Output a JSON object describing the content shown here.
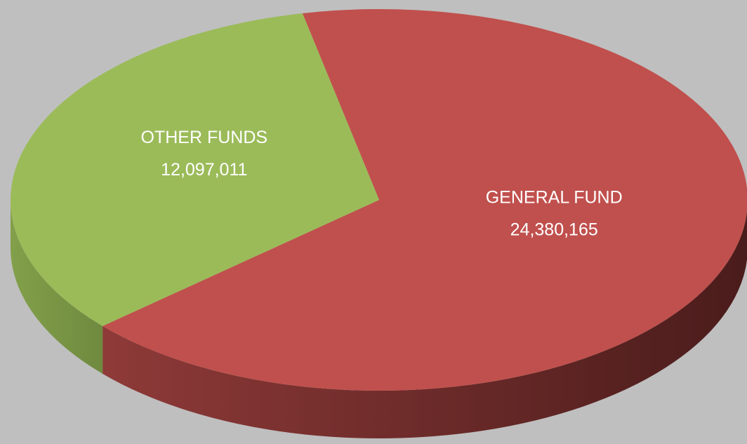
{
  "chart_data": {
    "type": "pie",
    "categories": [
      "GENERAL FUND",
      "OTHER FUNDS"
    ],
    "values": [
      24380165,
      12097011
    ],
    "value_labels": [
      "24,380,165",
      "12,097,011"
    ],
    "colors": [
      "#c0504d",
      "#9bbb59"
    ]
  }
}
